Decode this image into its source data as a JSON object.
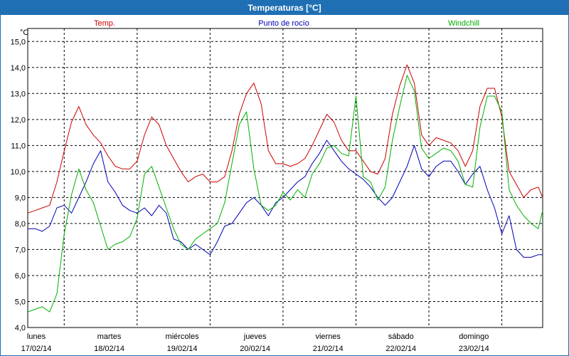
{
  "window": {
    "title": "Temperaturas [°C]"
  },
  "colors": {
    "temp": "#cc0000",
    "dew": "#0000b4",
    "wind": "#00b000",
    "grid": "#000000",
    "title_bar": "#1e6fb3"
  },
  "chart_data": {
    "type": "line",
    "title": "Temperaturas [°C]",
    "ylabel": "°C",
    "xlabel": "",
    "ylim": [
      4.0,
      15.5
    ],
    "xlim": [
      0,
      7.06
    ],
    "yticks": [
      "4,0",
      "5,0",
      "6,0",
      "7,0",
      "8,0",
      "9,0",
      "10,0",
      "11,0",
      "12,0",
      "13,0",
      "14,0",
      "15,0"
    ],
    "ytick_values": [
      4,
      5,
      6,
      7,
      8,
      9,
      10,
      11,
      12,
      13,
      14,
      15
    ],
    "xticks": [
      {
        "day": "lunes",
        "date": "17/02/14"
      },
      {
        "day": "martes",
        "date": "18/02/14"
      },
      {
        "day": "miércoles",
        "date": "19/02/14"
      },
      {
        "day": "jueves",
        "date": "20/02/14"
      },
      {
        "day": "viernes",
        "date": "21/02/14"
      },
      {
        "day": "sábado",
        "date": "22/02/14"
      },
      {
        "day": "domingo",
        "date": "23/02/14"
      }
    ],
    "grid": true,
    "legend_placement": "top",
    "series": [
      {
        "name": "Temp.",
        "key": "temp",
        "x": [
          0,
          0.1,
          0.2,
          0.3,
          0.4,
          0.5,
          0.6,
          0.7,
          0.8,
          0.9,
          1.0,
          1.1,
          1.2,
          1.3,
          1.4,
          1.5,
          1.6,
          1.7,
          1.8,
          1.9,
          2.0,
          2.1,
          2.2,
          2.3,
          2.4,
          2.5,
          2.6,
          2.7,
          2.8,
          2.9,
          3.0,
          3.1,
          3.2,
          3.3,
          3.4,
          3.5,
          3.6,
          3.7,
          3.8,
          3.9,
          4.0,
          4.1,
          4.2,
          4.3,
          4.4,
          4.5,
          4.6,
          4.7,
          4.8,
          4.9,
          5.0,
          5.1,
          5.2,
          5.3,
          5.4,
          5.5,
          5.6,
          5.7,
          5.8,
          5.9,
          6.0,
          6.1,
          6.2,
          6.3,
          6.4,
          6.5,
          6.6,
          6.7,
          6.8,
          6.9,
          7.0,
          7.06
        ],
        "values": [
          8.4,
          8.5,
          8.6,
          8.7,
          9.6,
          10.8,
          11.9,
          12.5,
          11.8,
          11.4,
          11.1,
          10.6,
          10.2,
          10.1,
          10.1,
          10.4,
          11.4,
          12.1,
          11.8,
          11.0,
          10.5,
          10.0,
          9.6,
          9.8,
          9.9,
          9.6,
          9.6,
          9.8,
          10.8,
          12.2,
          13.0,
          13.4,
          12.6,
          10.8,
          10.3,
          10.3,
          10.2,
          10.3,
          10.5,
          11.0,
          11.6,
          12.2,
          11.9,
          11.2,
          10.8,
          10.8,
          10.4,
          10.0,
          9.9,
          10.5,
          12.2,
          13.3,
          14.1,
          13.4,
          11.4,
          11.0,
          11.3,
          11.2,
          11.1,
          10.8,
          10.2,
          10.8,
          12.5,
          13.2,
          13.2,
          12.1,
          10.0,
          9.5,
          9.0,
          9.3,
          9.4,
          9.0
        ]
      },
      {
        "name": "Punto de rocío",
        "key": "dew",
        "x": [
          0,
          0.1,
          0.2,
          0.3,
          0.4,
          0.5,
          0.6,
          0.7,
          0.8,
          0.9,
          1.0,
          1.1,
          1.2,
          1.3,
          1.4,
          1.5,
          1.6,
          1.7,
          1.8,
          1.9,
          2.0,
          2.1,
          2.2,
          2.3,
          2.4,
          2.5,
          2.6,
          2.7,
          2.8,
          2.9,
          3.0,
          3.1,
          3.2,
          3.3,
          3.4,
          3.5,
          3.6,
          3.7,
          3.8,
          3.9,
          4.0,
          4.1,
          4.2,
          4.3,
          4.4,
          4.5,
          4.6,
          4.7,
          4.8,
          4.9,
          5.0,
          5.1,
          5.2,
          5.3,
          5.4,
          5.5,
          5.6,
          5.7,
          5.8,
          5.9,
          6.0,
          6.1,
          6.2,
          6.3,
          6.4,
          6.5,
          6.6,
          6.7,
          6.8,
          6.9,
          7.0,
          7.06
        ],
        "values": [
          7.8,
          7.8,
          7.7,
          7.9,
          8.6,
          8.7,
          8.4,
          9.0,
          9.6,
          10.3,
          10.8,
          9.6,
          9.2,
          8.7,
          8.5,
          8.4,
          8.6,
          8.3,
          8.7,
          8.4,
          7.4,
          7.3,
          7.0,
          7.2,
          7.0,
          6.8,
          7.3,
          7.9,
          8.0,
          8.4,
          8.8,
          9.0,
          8.7,
          8.3,
          8.8,
          9.0,
          9.3,
          9.6,
          9.8,
          10.3,
          10.7,
          11.2,
          10.8,
          10.4,
          10.1,
          9.9,
          9.7,
          9.4,
          9.0,
          8.7,
          9.0,
          9.6,
          10.2,
          11.0,
          10.1,
          9.8,
          10.2,
          10.4,
          10.4,
          10.0,
          9.5,
          9.9,
          10.2,
          9.3,
          8.6,
          7.6,
          8.3,
          7.0,
          6.7,
          6.7,
          6.8,
          6.8
        ]
      },
      {
        "name": "Windchill",
        "key": "wind",
        "x": [
          0,
          0.1,
          0.2,
          0.3,
          0.4,
          0.5,
          0.6,
          0.7,
          0.8,
          0.9,
          1.0,
          1.1,
          1.2,
          1.3,
          1.4,
          1.5,
          1.6,
          1.7,
          1.8,
          1.9,
          2.0,
          2.1,
          2.2,
          2.3,
          2.4,
          2.5,
          2.6,
          2.7,
          2.8,
          2.9,
          3.0,
          3.1,
          3.2,
          3.3,
          3.4,
          3.5,
          3.6,
          3.7,
          3.8,
          3.9,
          4.0,
          4.1,
          4.2,
          4.3,
          4.4,
          4.5,
          4.6,
          4.7,
          4.8,
          4.9,
          5.0,
          5.1,
          5.2,
          5.3,
          5.4,
          5.5,
          5.6,
          5.7,
          5.8,
          5.9,
          6.0,
          6.1,
          6.2,
          6.3,
          6.4,
          6.5,
          6.6,
          6.7,
          6.8,
          6.9,
          7.0,
          7.06
        ],
        "values": [
          4.6,
          4.7,
          4.8,
          4.6,
          5.3,
          7.6,
          9.1,
          10.1,
          9.3,
          8.8,
          7.9,
          7.0,
          7.2,
          7.3,
          7.5,
          8.2,
          9.9,
          10.2,
          9.4,
          8.6,
          7.8,
          7.2,
          7.0,
          7.4,
          7.6,
          7.8,
          8.0,
          8.8,
          10.3,
          11.8,
          12.3,
          10.1,
          8.7,
          8.5,
          8.7,
          9.2,
          8.9,
          9.3,
          9.0,
          9.9,
          10.3,
          10.9,
          11.0,
          10.7,
          10.6,
          12.9,
          9.8,
          9.6,
          8.9,
          9.4,
          11.2,
          12.5,
          13.7,
          13.1,
          10.9,
          10.5,
          10.7,
          10.9,
          10.8,
          10.4,
          9.5,
          9.4,
          11.7,
          12.9,
          12.9,
          12.3,
          9.3,
          8.7,
          8.3,
          8.0,
          7.8,
          8.5
        ]
      }
    ]
  }
}
